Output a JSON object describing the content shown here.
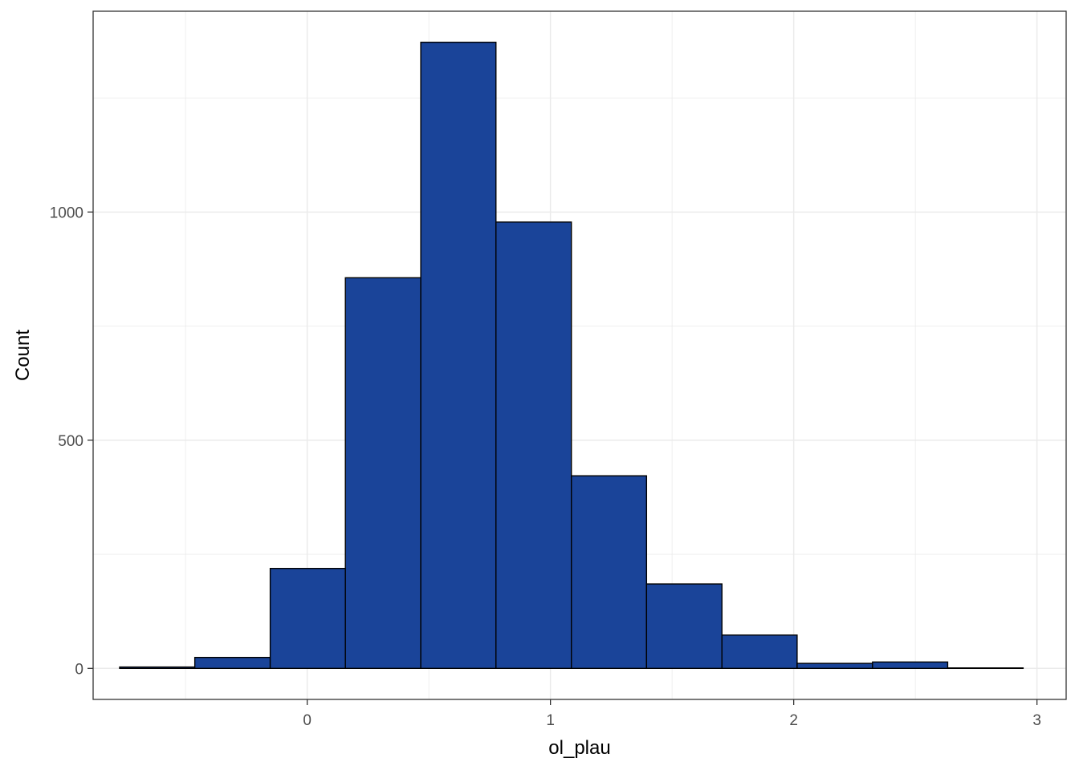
{
  "chart_data": {
    "type": "bar",
    "subtype": "histogram",
    "title": "",
    "xlabel": "ol_plau",
    "ylabel": "Count",
    "xlim": [
      -0.88,
      3.12
    ],
    "ylim": [
      -68,
      1440
    ],
    "x_ticks": [
      0,
      1,
      2,
      3
    ],
    "x_minor_ticks": [
      -0.5,
      0.5,
      1.5,
      2.5
    ],
    "y_ticks": [
      0,
      500,
      1000
    ],
    "y_minor_ticks": [
      250,
      750,
      1250
    ],
    "grid": true,
    "legend": "none",
    "bin_width": 0.3095,
    "bins": [
      {
        "x0": -0.771,
        "x1": -0.462,
        "count": 3
      },
      {
        "x0": -0.462,
        "x1": -0.152,
        "count": 24
      },
      {
        "x0": -0.152,
        "x1": 0.157,
        "count": 219
      },
      {
        "x0": 0.157,
        "x1": 0.467,
        "count": 856
      },
      {
        "x0": 0.467,
        "x1": 0.776,
        "count": 1372
      },
      {
        "x0": 0.776,
        "x1": 1.086,
        "count": 978
      },
      {
        "x0": 1.086,
        "x1": 1.395,
        "count": 422
      },
      {
        "x0": 1.395,
        "x1": 1.705,
        "count": 185
      },
      {
        "x0": 1.705,
        "x1": 2.014,
        "count": 73
      },
      {
        "x0": 2.014,
        "x1": 2.324,
        "count": 11
      },
      {
        "x0": 2.324,
        "x1": 2.633,
        "count": 14
      },
      {
        "x0": 2.633,
        "x1": 2.943,
        "count": 1
      }
    ],
    "colors": {
      "fill": "#1a4499",
      "edge": "#000000",
      "grid": "#ebebeb",
      "panel_border": "#333333",
      "tick_label": "#4d4d4d"
    }
  }
}
